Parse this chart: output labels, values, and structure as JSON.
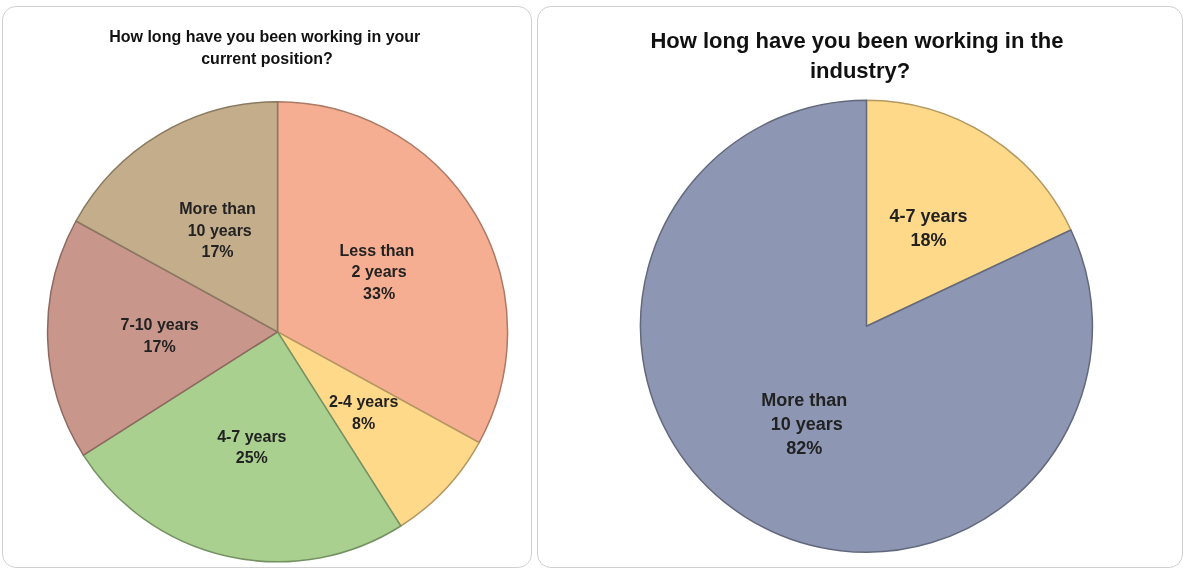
{
  "chart_data": [
    {
      "type": "pie",
      "title": "How long have you been working in your current position?",
      "categories": [
        "Less than 2 years",
        "2-4 years",
        "4-7 years",
        "7-10 years",
        "More than 10 years"
      ],
      "values": [
        33,
        8,
        25,
        17,
        17
      ],
      "value_labels": [
        "33%",
        "8%",
        "25%",
        "17%",
        "17%"
      ],
      "colors": [
        "#f5ae91",
        "#ffd98a",
        "#a9d08e",
        "#c9968b",
        "#c4ad8b"
      ],
      "legend": false
    },
    {
      "type": "pie",
      "title": "How long have you been working in the industry?",
      "categories": [
        "4-7 years",
        "More than 10 years"
      ],
      "values": [
        18,
        82
      ],
      "value_labels": [
        "18%",
        "82%"
      ],
      "colors": [
        "#ffd98a",
        "#8d96b2"
      ],
      "legend": false
    }
  ]
}
